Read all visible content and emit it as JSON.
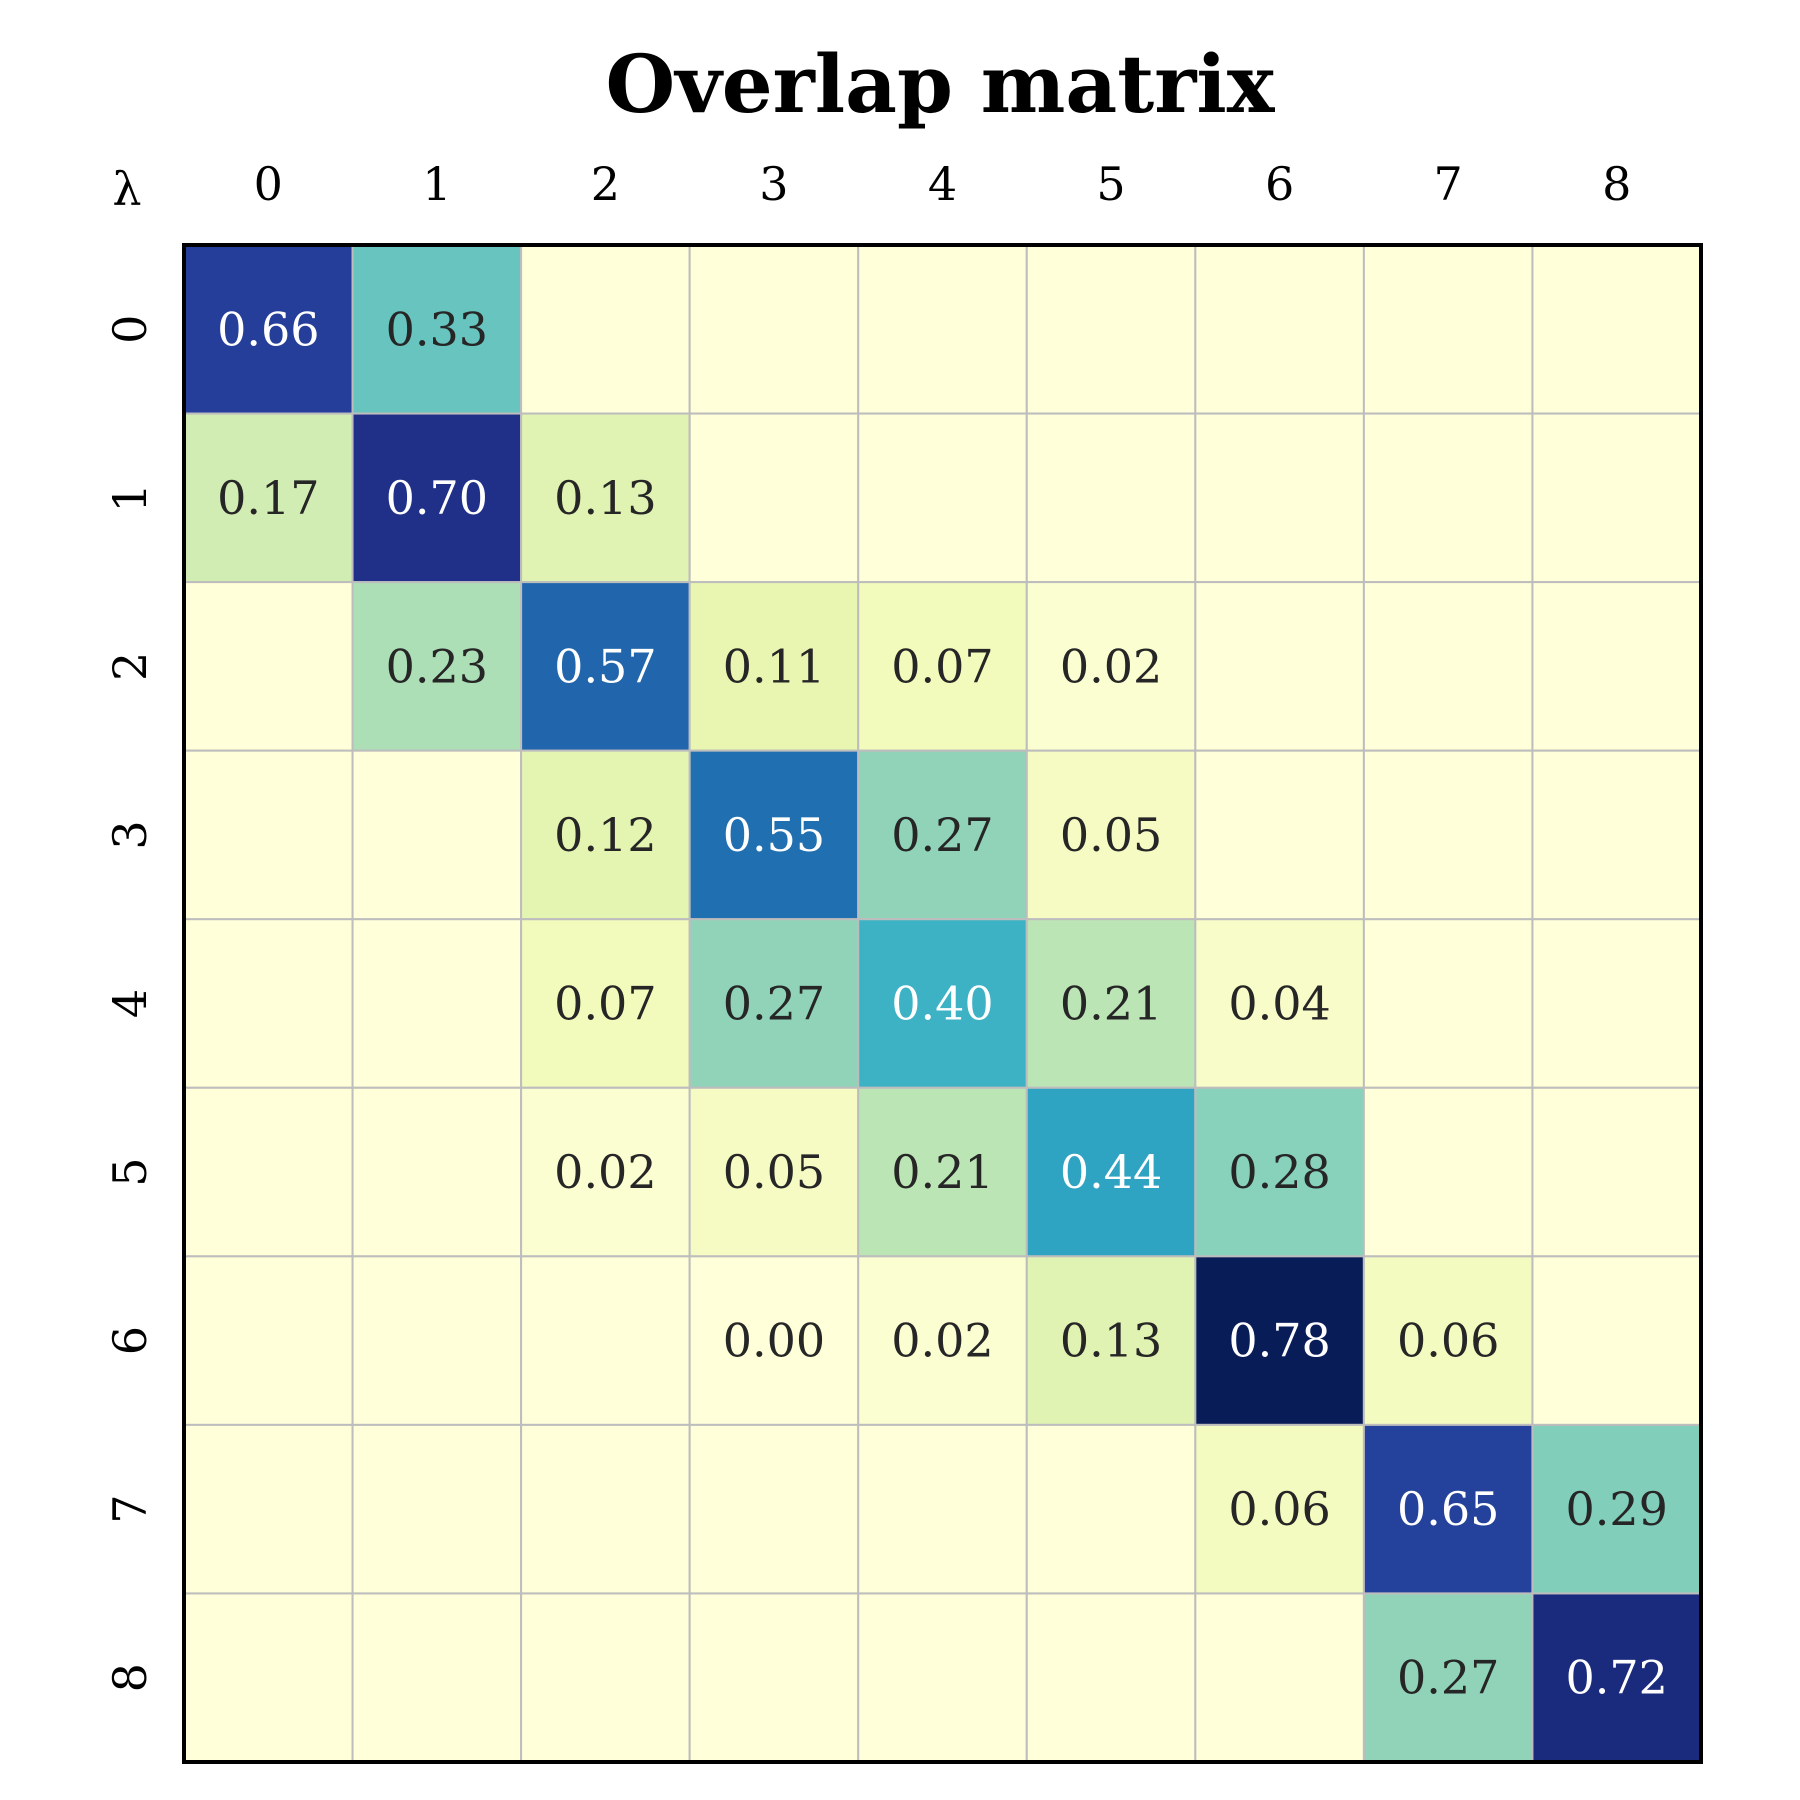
{
  "chart_data": {
    "type": "heatmap",
    "title": "Overlap matrix",
    "corner_label": "λ",
    "x_labels": [
      "0",
      "1",
      "2",
      "3",
      "4",
      "5",
      "6",
      "7",
      "8"
    ],
    "y_labels": [
      "0",
      "1",
      "2",
      "3",
      "4",
      "5",
      "6",
      "7",
      "8"
    ],
    "colormap": "YlGnBu",
    "vmin": 0,
    "vmax": 0.78,
    "grid": true,
    "values": [
      [
        0.66,
        0.33,
        0,
        0,
        0,
        0,
        0,
        0,
        0
      ],
      [
        0.17,
        0.7,
        0.13,
        0,
        0,
        0,
        0,
        0,
        0
      ],
      [
        0,
        0.23,
        0.57,
        0.11,
        0.07,
        0.02,
        0,
        0,
        0
      ],
      [
        0,
        0,
        0.12,
        0.55,
        0.27,
        0.05,
        0,
        0,
        0
      ],
      [
        0,
        0,
        0.07,
        0.27,
        0.4,
        0.21,
        0.04,
        0,
        0
      ],
      [
        0,
        0,
        0.02,
        0.05,
        0.21,
        0.44,
        0.28,
        0,
        0
      ],
      [
        0,
        0,
        0,
        0.0,
        0.02,
        0.13,
        0.78,
        0.06,
        0
      ],
      [
        0,
        0,
        0,
        0,
        0,
        0,
        0.06,
        0.65,
        0.29
      ],
      [
        0,
        0,
        0,
        0,
        0,
        0,
        0,
        0.27,
        0.72
      ]
    ],
    "labels": [
      [
        "0.66",
        "0.33",
        "",
        "",
        "",
        "",
        "",
        "",
        ""
      ],
      [
        "0.17",
        "0.70",
        "0.13",
        "",
        "",
        "",
        "",
        "",
        ""
      ],
      [
        "",
        "0.23",
        "0.57",
        "0.11",
        "0.07",
        "0.02",
        "",
        "",
        ""
      ],
      [
        "",
        "",
        "0.12",
        "0.55",
        "0.27",
        "0.05",
        "",
        "",
        ""
      ],
      [
        "",
        "",
        "0.07",
        "0.27",
        "0.40",
        "0.21",
        "0.04",
        "",
        ""
      ],
      [
        "",
        "",
        "0.02",
        "0.05",
        "0.21",
        "0.44",
        "0.28",
        "",
        ""
      ],
      [
        "",
        "",
        "",
        "0.00",
        "0.02",
        "0.13",
        "0.78",
        "0.06",
        ""
      ],
      [
        "",
        "",
        "",
        "",
        "",
        "",
        "0.06",
        "0.65",
        "0.29"
      ],
      [
        "",
        "",
        "",
        "",
        "",
        "",
        "",
        "0.27",
        "0.72"
      ]
    ],
    "colors": {
      "cell_border": "#bdbdbd",
      "frame": "#000000",
      "dark_text": "#262626",
      "light_text": "#ffffff"
    }
  }
}
